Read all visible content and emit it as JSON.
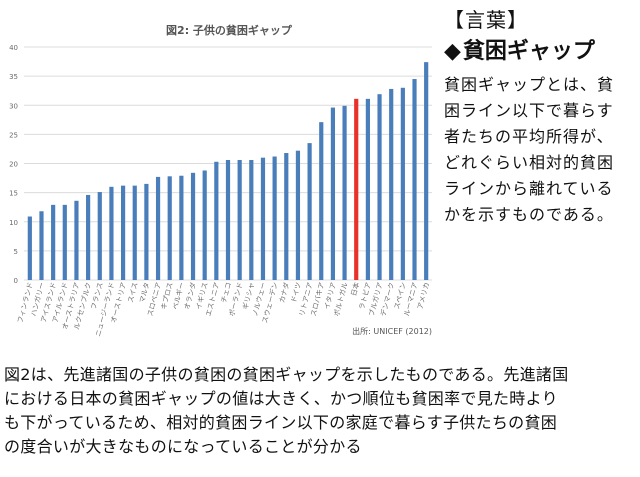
{
  "chart_data": {
    "type": "bar",
    "title": "図2: 子供の貧困ギャップ",
    "source": "出所: UNICEF (2012)",
    "ylim": [
      0,
      40
    ],
    "yticks": [
      0,
      5,
      10,
      15,
      20,
      25,
      30,
      35,
      40
    ],
    "grid": true,
    "categories": [
      "フィンランド",
      "ハンガリー",
      "アイスランド",
      "アイルランド",
      "オーストラリア",
      "ルクセンブルク",
      "フランス",
      "ニュージーランド",
      "オーストリア",
      "スイス",
      "マルタ",
      "スロベニア",
      "キプロス",
      "ベルギー",
      "オランダ",
      "イギリス",
      "エストニア",
      "チェコ",
      "ポーランド",
      "ギリシャ",
      "ノルウェー",
      "スウェーデン",
      "カナダ",
      "ドイツ",
      "リトアニア",
      "スロバキア",
      "イタリア",
      "ポルトガル",
      "日本",
      "ラトビア",
      "ブルガリア",
      "デンマーク",
      "スペイン",
      "ルーマニア",
      "アメリカ"
    ],
    "values": [
      10.9,
      11.8,
      12.9,
      12.9,
      13.6,
      14.6,
      15.1,
      16.0,
      16.2,
      16.2,
      16.5,
      17.7,
      17.8,
      17.9,
      18.4,
      18.8,
      20.3,
      20.6,
      20.6,
      20.6,
      21.0,
      21.2,
      21.8,
      22.2,
      23.5,
      27.1,
      29.6,
      29.9,
      31.1,
      31.1,
      31.9,
      32.8,
      33.0,
      34.5,
      37.4
    ],
    "highlight": "日本",
    "colors": {
      "bar": "#4a7ebb",
      "highlight": "#e8312a",
      "grid": "#dcdcdc",
      "axis_text": "#6b6b6b"
    }
  },
  "sidebar": {
    "heading": "【言葉】",
    "term_marker": "◆",
    "term": "貧困ギャップ",
    "definition_lines": [
      "貧困ギャップとは、貧",
      "困ライン以下で暮らす",
      "者たちの平均所得が、",
      "どれぐらい相対的貧困",
      "ラインから離れている",
      "かを示すものである。"
    ]
  },
  "caption": {
    "lines": [
      "図2は、先進諸国の子供の貧困の貧困ギャップを示したものである。先進諸国",
      "における日本の貧困ギャップの値は大きく、かつ順位も貧困率で見た時より",
      "も下がっているため、相対的貧困ライン以下の家庭で暮らす子供たちの貧困",
      "の度合いが大きなものになっていることが分かる"
    ]
  }
}
